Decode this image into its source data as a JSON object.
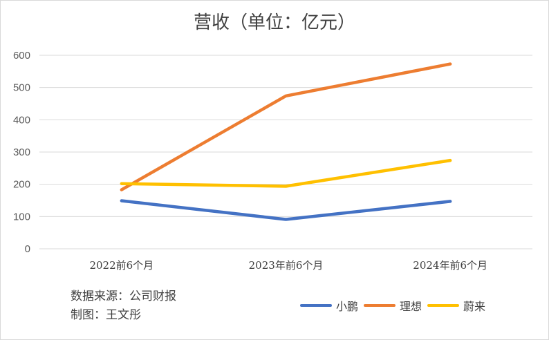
{
  "source_note": "数据来源：公司财报",
  "author_note": "制图：王文彤",
  "chart_data": {
    "type": "line",
    "title": "营收（单位：亿元）",
    "xlabel": "",
    "ylabel": "",
    "categories": [
      "2022前6个月",
      "2023年前6个月",
      "2024年前6个月"
    ],
    "ylim": [
      0,
      600
    ],
    "yticks": [
      0,
      100,
      200,
      300,
      400,
      500,
      600
    ],
    "grid": true,
    "legend_position": "bottom-right",
    "series": [
      {
        "name": "小鹏",
        "color": "#4472c4",
        "values": [
          149,
          91,
          147
        ]
      },
      {
        "name": "理想",
        "color": "#ed7d31",
        "values": [
          183,
          474,
          573
        ]
      },
      {
        "name": "蔚来",
        "color": "#ffc000",
        "values": [
          202,
          194,
          274
        ]
      }
    ]
  }
}
